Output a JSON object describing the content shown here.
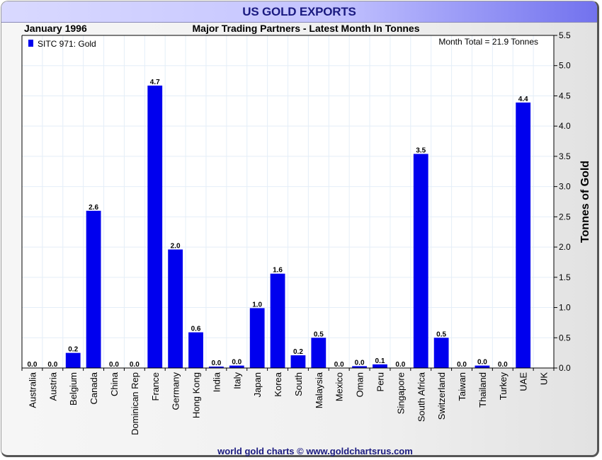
{
  "chart_data": {
    "type": "bar",
    "title": "US GOLD EXPORTS",
    "subtitle": "Major Trading Partners - Latest Month In Tonnes",
    "date_label": "January 1996",
    "annotation": "Month Total = 21.9 Tonnes",
    "legend": {
      "entries": [
        "SITC 971: Gold"
      ],
      "placement": "top-left"
    },
    "xlabel": "",
    "ylabel": "Tonnes of Gold",
    "ylim": [
      0,
      5.5
    ],
    "yticks": [
      "0.0",
      "0.5",
      "1.0",
      "1.5",
      "2.0",
      "2.5",
      "3.0",
      "3.5",
      "4.0",
      "4.5",
      "5.0",
      "5.5"
    ],
    "y_axis_side": "right",
    "grid": true,
    "categories": [
      "Australia",
      "Austria",
      "Belgium",
      "Canada",
      "China",
      "Dominican Rep",
      "France",
      "Germany",
      "Hong Kong",
      "India",
      "Italy",
      "Japan",
      "Korea",
      "South",
      "Malaysia",
      "Mexico",
      "Oman",
      "Peru",
      "Singapore",
      "South Africa",
      "Switzerland",
      "Taiwan",
      "Thailand",
      "Turkey",
      "UAE",
      "UK"
    ],
    "series": [
      {
        "name": "SITC 971: Gold",
        "values": [
          0.0,
          0.0,
          0.25,
          2.6,
          0.0,
          0.0,
          4.67,
          1.96,
          0.59,
          0.02,
          0.04,
          0.99,
          1.56,
          0.21,
          0.5,
          0.0,
          0.03,
          0.06,
          0.0,
          3.54,
          0.5,
          0.0,
          0.04,
          0.0,
          4.39,
          null
        ],
        "labels": [
          "0.0",
          "0.0",
          "0.2",
          "2.6",
          "0.0",
          "0.0",
          "4.7",
          "2.0",
          "0.6",
          "0.0",
          "0.0",
          "1.0",
          "1.6",
          "0.2",
          "0.5",
          "0.0",
          "0.0",
          "0.1",
          "0.0",
          "3.5",
          "0.5",
          "0.0",
          "0.0",
          "0.0",
          "4.4",
          ""
        ]
      }
    ],
    "footer": "world gold charts © www.goldchartsrus.com",
    "colors": {
      "bar": "#0000ee",
      "title": "#1a1a80",
      "grid": "#e4eef8",
      "footer": "#1a1a80"
    }
  }
}
